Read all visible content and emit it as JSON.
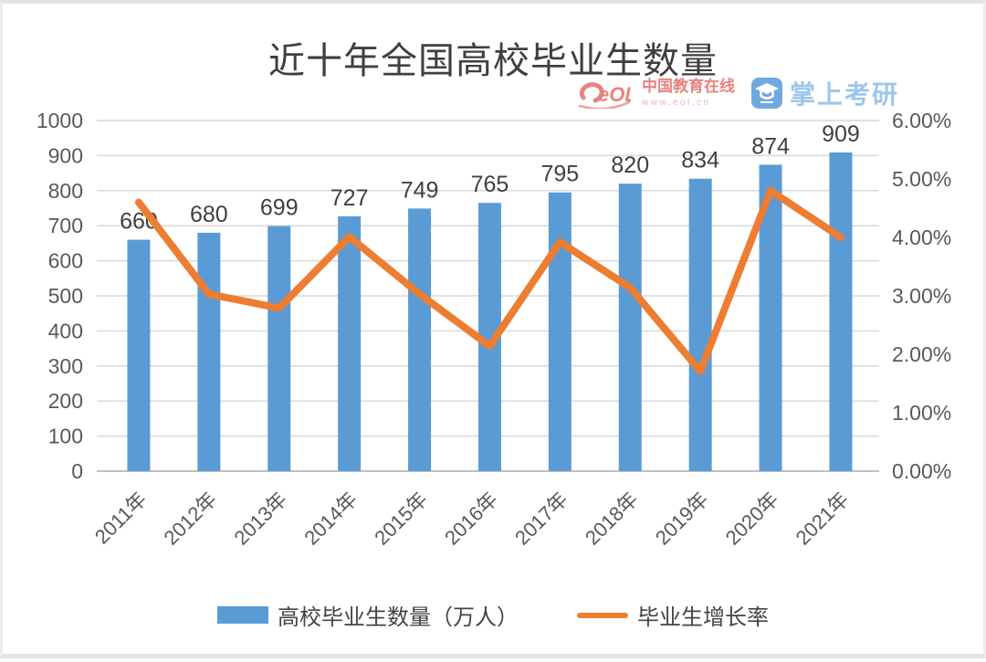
{
  "title": "近十年全国高校毕业生数量",
  "logo": {
    "eol_word": "eOL",
    "brand_name": "中国教育在线",
    "brand_url": "www.eol.cn",
    "app_name": "掌上考研"
  },
  "legend": {
    "bar_label": "高校毕业生数量（万人）",
    "line_label": "毕业生增长率"
  },
  "chart_data": {
    "type": "bar+line combo",
    "title": "近十年全国高校毕业生数量",
    "categories": [
      "2011年",
      "2012年",
      "2013年",
      "2014年",
      "2015年",
      "2016年",
      "2017年",
      "2018年",
      "2019年",
      "2020年",
      "2021年"
    ],
    "series": [
      {
        "name": "高校毕业生数量（万人）",
        "type": "bar",
        "axis": "left",
        "color": "#5B9BD5",
        "values": [
          660,
          680,
          699,
          727,
          749,
          765,
          795,
          820,
          834,
          874,
          909
        ],
        "data_labels": [
          "660",
          "680",
          "699",
          "727",
          "749",
          "765",
          "795",
          "820",
          "834",
          "874",
          "909"
        ]
      },
      {
        "name": "毕业生增长率",
        "type": "line",
        "axis": "right",
        "color": "#ED7D31",
        "values_pct": [
          4.6,
          3.03,
          2.79,
          4.01,
          3.03,
          2.14,
          3.92,
          3.14,
          1.71,
          4.8,
          4.0
        ]
      }
    ],
    "left_axis": {
      "min": 0,
      "max": 1000,
      "step": 100,
      "tick_labels": [
        "0",
        "100",
        "200",
        "300",
        "400",
        "500",
        "600",
        "700",
        "800",
        "900",
        "1000"
      ]
    },
    "right_axis": {
      "min": 0,
      "max": 6,
      "step": 1,
      "tick_labels": [
        "0.00%",
        "1.00%",
        "2.00%",
        "3.00%",
        "4.00%",
        "5.00%",
        "6.00%"
      ]
    },
    "grid": true,
    "legend_position": "bottom"
  },
  "colors": {
    "bar": "#5B9BD5",
    "line": "#ED7D31",
    "grid": "#d9d9d9",
    "baseline": "#c0c0c0",
    "axis_text": "#595959",
    "data_label": "#404040"
  }
}
